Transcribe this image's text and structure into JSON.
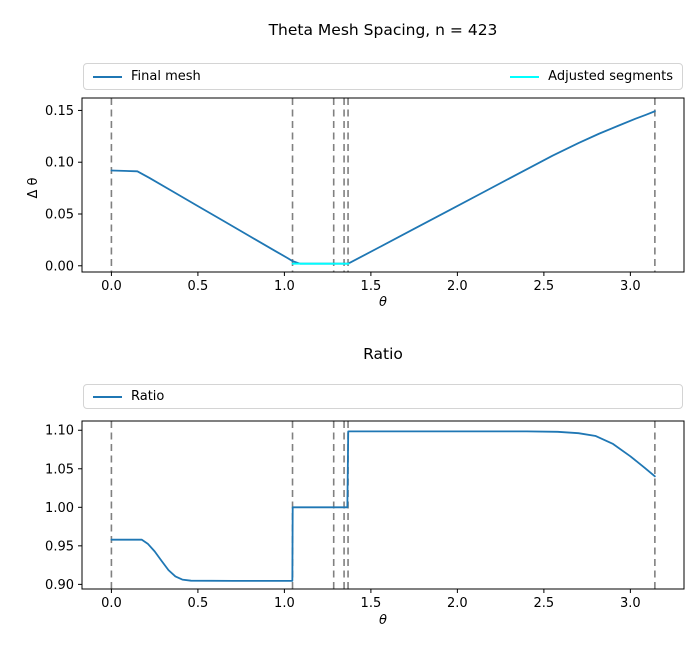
{
  "figure": {
    "background": "#ffffff"
  },
  "style": {
    "line_blue": "#1f77b4",
    "line_cyan": "#00ffff",
    "vline_gray": "#808080",
    "spine_black": "#000000",
    "legend_border": "#d4d4d4"
  },
  "chart_data": [
    {
      "type": "line",
      "title": "Theta Mesh Spacing, n = 423",
      "xlabel": "θ",
      "ylabel": "Δ θ",
      "xlim": [
        -0.17,
        3.31
      ],
      "ylim": [
        -0.006,
        0.162
      ],
      "grid": false,
      "legend_position": "above-expand",
      "xticks": [
        0.0,
        0.5,
        1.0,
        1.5,
        2.0,
        2.5,
        3.0
      ],
      "xtick_labels": [
        "0.0",
        "0.5",
        "1.0",
        "1.5",
        "2.0",
        "2.5",
        "3.0"
      ],
      "yticks": [
        0.0,
        0.05,
        0.1,
        0.15
      ],
      "ytick_labels": [
        "0.00",
        "0.05",
        "0.10",
        "0.15"
      ],
      "vlines": {
        "x": [
          0.0,
          1.047,
          1.285,
          1.345,
          1.368,
          3.1416
        ],
        "color": "#808080",
        "style": "dashed"
      },
      "series": [
        {
          "name": "Final mesh",
          "color": "#1f77b4",
          "points": [
            [
              0.0,
              0.092
            ],
            [
              0.15,
              0.0912
            ],
            [
              0.22,
              0.0848
            ],
            [
              0.35,
              0.0722
            ],
            [
              0.5,
              0.0576
            ],
            [
              0.65,
              0.0431
            ],
            [
              0.8,
              0.0285
            ],
            [
              0.95,
              0.014
            ],
            [
              1.02,
              0.0073
            ],
            [
              1.047,
              0.0045
            ],
            [
              1.09,
              0.002
            ],
            [
              1.368,
              0.002
            ],
            [
              1.55,
              0.018
            ],
            [
              1.75,
              0.0357
            ],
            [
              1.95,
              0.0533
            ],
            [
              2.15,
              0.071
            ],
            [
              2.35,
              0.0887
            ],
            [
              2.55,
              0.1063
            ],
            [
              2.7,
              0.1185
            ],
            [
              2.82,
              0.1276
            ],
            [
              2.93,
              0.1352
            ],
            [
              3.03,
              0.142
            ],
            [
              3.09,
              0.1458
            ],
            [
              3.1416,
              0.1492
            ]
          ]
        },
        {
          "name": "Adjusted segments",
          "color": "#00ffff",
          "points": [
            [
              1.047,
              0.002
            ],
            [
              1.372,
              0.002
            ]
          ]
        }
      ]
    },
    {
      "type": "line",
      "title": "Ratio",
      "xlabel": "θ",
      "ylabel": "",
      "xlim": [
        -0.17,
        3.31
      ],
      "ylim": [
        0.894,
        1.112
      ],
      "grid": false,
      "legend_position": "above",
      "xticks": [
        0.0,
        0.5,
        1.0,
        1.5,
        2.0,
        2.5,
        3.0
      ],
      "xtick_labels": [
        "0.0",
        "0.5",
        "1.0",
        "1.5",
        "2.0",
        "2.5",
        "3.0"
      ],
      "yticks": [
        0.9,
        0.95,
        1.0,
        1.05,
        1.1
      ],
      "ytick_labels": [
        "0.90",
        "0.95",
        "1.00",
        "1.05",
        "1.10"
      ],
      "vlines": {
        "x": [
          0.0,
          1.047,
          1.285,
          1.345,
          1.368,
          3.1416
        ],
        "color": "#808080",
        "style": "dashed"
      },
      "series": [
        {
          "name": "Ratio",
          "color": "#1f77b4",
          "points": [
            [
              0.0,
              0.958
            ],
            [
              0.175,
              0.958
            ],
            [
              0.21,
              0.9528
            ],
            [
              0.25,
              0.9428
            ],
            [
              0.29,
              0.9305
            ],
            [
              0.33,
              0.9185
            ],
            [
              0.37,
              0.9103
            ],
            [
              0.41,
              0.9062
            ],
            [
              0.46,
              0.9048
            ],
            [
              0.7,
              0.9045
            ],
            [
              1.046,
              0.9045
            ],
            [
              1.048,
              1.0
            ],
            [
              1.2,
              1.0
            ],
            [
              1.364,
              1.0
            ],
            [
              1.369,
              1.0985
            ],
            [
              1.6,
              1.0985
            ],
            [
              2.0,
              1.0985
            ],
            [
              2.4,
              1.0985
            ],
            [
              2.58,
              1.098
            ],
            [
              2.7,
              1.0962
            ],
            [
              2.8,
              1.0925
            ],
            [
              2.9,
              1.0822
            ],
            [
              3.0,
              1.0662
            ],
            [
              3.08,
              1.0518
            ],
            [
              3.1416,
              1.0402
            ]
          ]
        }
      ]
    }
  ]
}
